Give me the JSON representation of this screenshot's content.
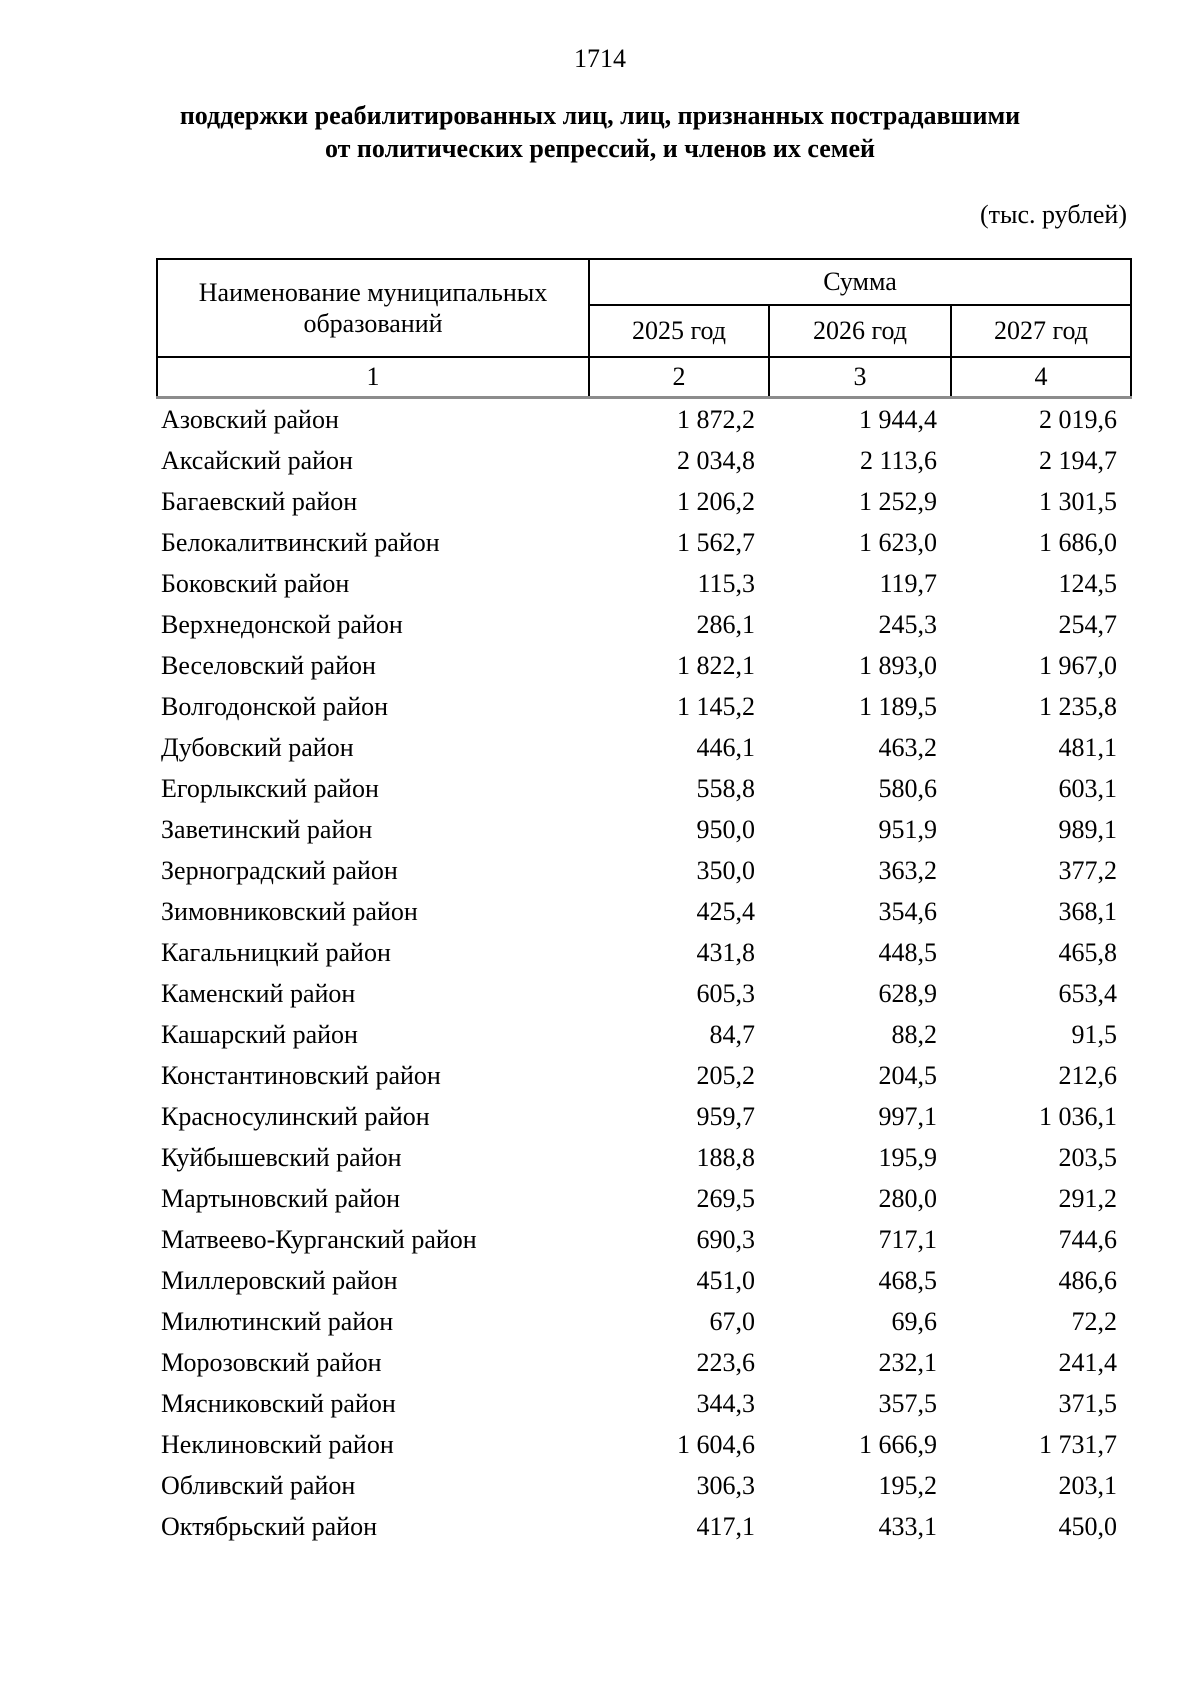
{
  "page": {
    "number": "1714"
  },
  "title": {
    "line1": "поддержки реабилитированных лиц, лиц, признанных пострадавшими",
    "line2": "от политических репрессий, и членов их семей"
  },
  "units_note": "(тыс. рублей)",
  "table": {
    "col1_header": "Наименование муниципальных образований",
    "group_header": "Сумма",
    "year_headers": [
      "2025 год",
      "2026 год",
      "2027 год"
    ],
    "index_row": [
      "1",
      "2",
      "3",
      "4"
    ],
    "rows": [
      {
        "name": "Азовский район",
        "y2025": "1 872,2",
        "y2026": "1 944,4",
        "y2027": "2 019,6"
      },
      {
        "name": "Аксайский район",
        "y2025": "2 034,8",
        "y2026": "2 113,6",
        "y2027": "2 194,7"
      },
      {
        "name": "Багаевский район",
        "y2025": "1 206,2",
        "y2026": "1 252,9",
        "y2027": "1 301,5"
      },
      {
        "name": "Белокалитвинский район",
        "y2025": "1 562,7",
        "y2026": "1 623,0",
        "y2027": "1 686,0"
      },
      {
        "name": "Боковский район",
        "y2025": "115,3",
        "y2026": "119,7",
        "y2027": "124,5"
      },
      {
        "name": "Верхнедонской район",
        "y2025": "286,1",
        "y2026": "245,3",
        "y2027": "254,7"
      },
      {
        "name": "Веселовский район",
        "y2025": "1 822,1",
        "y2026": "1 893,0",
        "y2027": "1 967,0"
      },
      {
        "name": "Волгодонской район",
        "y2025": "1 145,2",
        "y2026": "1 189,5",
        "y2027": "1 235,8"
      },
      {
        "name": "Дубовский район",
        "y2025": "446,1",
        "y2026": "463,2",
        "y2027": "481,1"
      },
      {
        "name": "Егорлыкский район",
        "y2025": "558,8",
        "y2026": "580,6",
        "y2027": "603,1"
      },
      {
        "name": "Заветинский район",
        "y2025": "950,0",
        "y2026": "951,9",
        "y2027": "989,1"
      },
      {
        "name": "Зерноградский район",
        "y2025": "350,0",
        "y2026": "363,2",
        "y2027": "377,2"
      },
      {
        "name": "Зимовниковский район",
        "y2025": "425,4",
        "y2026": "354,6",
        "y2027": "368,1"
      },
      {
        "name": "Кагальницкий район",
        "y2025": "431,8",
        "y2026": "448,5",
        "y2027": "465,8"
      },
      {
        "name": "Каменский район",
        "y2025": "605,3",
        "y2026": "628,9",
        "y2027": "653,4"
      },
      {
        "name": "Кашарский район",
        "y2025": "84,7",
        "y2026": "88,2",
        "y2027": "91,5"
      },
      {
        "name": "Константиновский район",
        "y2025": "205,2",
        "y2026": "204,5",
        "y2027": "212,6"
      },
      {
        "name": "Красносулинский район",
        "y2025": "959,7",
        "y2026": "997,1",
        "y2027": "1 036,1"
      },
      {
        "name": "Куйбышевский район",
        "y2025": "188,8",
        "y2026": "195,9",
        "y2027": "203,5"
      },
      {
        "name": "Мартыновский район",
        "y2025": "269,5",
        "y2026": "280,0",
        "y2027": "291,2"
      },
      {
        "name": "Матвеево-Курганский район",
        "y2025": "690,3",
        "y2026": "717,1",
        "y2027": "744,6"
      },
      {
        "name": "Миллеровский район",
        "y2025": "451,0",
        "y2026": "468,5",
        "y2027": "486,6"
      },
      {
        "name": "Милютинский район",
        "y2025": "67,0",
        "y2026": "69,6",
        "y2027": "72,2"
      },
      {
        "name": "Морозовский район",
        "y2025": "223,6",
        "y2026": "232,1",
        "y2027": "241,4"
      },
      {
        "name": "Мясниковский район",
        "y2025": "344,3",
        "y2026": "357,5",
        "y2027": "371,5"
      },
      {
        "name": "Неклиновский район",
        "y2025": "1 604,6",
        "y2026": "1 666,9",
        "y2027": "1 731,7"
      },
      {
        "name": "Обливский район",
        "y2025": "306,3",
        "y2026": "195,2",
        "y2027": "203,1"
      },
      {
        "name": "Октябрьский район",
        "y2025": "417,1",
        "y2026": "433,1",
        "y2027": "450,0"
      }
    ]
  }
}
